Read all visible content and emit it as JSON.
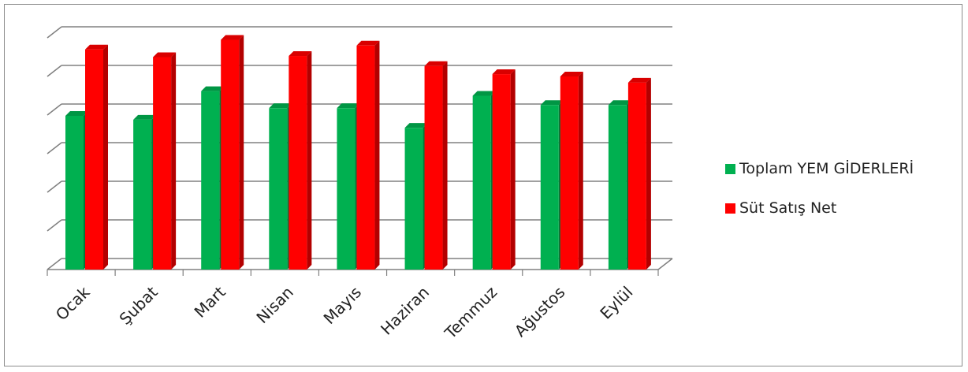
{
  "chart_data": {
    "type": "bar",
    "categories": [
      "Ocak",
      "Şubat",
      "Mart",
      "Nisan",
      "Mayıs",
      "Haziran",
      "Temmuz",
      "Ağustos",
      "Eylül"
    ],
    "series": [
      {
        "name": "Toplam YEM GİDERLERİ",
        "color": "#00b050",
        "values": [
          3.98,
          3.88,
          4.62,
          4.18,
          4.18,
          3.67,
          4.5,
          4.26,
          4.26
        ]
      },
      {
        "name": "Süt Satış Net",
        "color": "#ff0000",
        "values": [
          5.7,
          5.5,
          5.95,
          5.53,
          5.8,
          5.27,
          5.06,
          5.0,
          4.84
        ]
      }
    ],
    "ylim": [
      0,
      6
    ],
    "y_ticks_labeled": false,
    "grid": true,
    "legend_position": "right",
    "style": "3d-clustered-column"
  },
  "legend": {
    "items": [
      {
        "label": "Toplam YEM GİDERLERİ",
        "color": "#00b050"
      },
      {
        "label": "Süt Satış Net",
        "color": "#ff0000"
      }
    ]
  }
}
